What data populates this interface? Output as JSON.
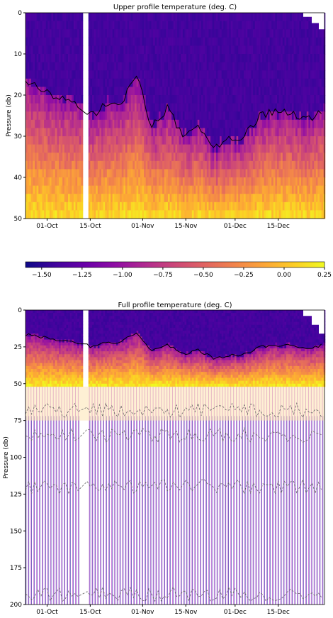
{
  "figure": {
    "colors": {
      "background": "#ffffff",
      "cmap": [
        "#0d0887",
        "#41049d",
        "#6a00a8",
        "#8f0da4",
        "#b12a90",
        "#cc4778",
        "#e16462",
        "#f2844b",
        "#fca636",
        "#fcce25",
        "#f0f921"
      ]
    }
  },
  "chart_data": [
    {
      "type": "heatmap",
      "title": "Upper profile temperature (deg. C)",
      "xlabel": "",
      "ylabel": "Pressure (db)",
      "x_ticks": [
        "01-Oct",
        "15-Oct",
        "01-Nov",
        "15-Nov",
        "01-Dec",
        "15-Dec"
      ],
      "x_range": [
        "2023-09-24",
        "2023-12-30"
      ],
      "y_ticks": [
        0,
        10,
        20,
        30,
        40,
        50
      ],
      "ylim": [
        50,
        0
      ],
      "z_range": [
        -1.6,
        0.25
      ],
      "gap": [
        "2023-10-12",
        "2023-10-14"
      ],
      "thermocline_depth_by_date": [
        {
          "date": "2023-09-26",
          "depth": 17
        },
        {
          "date": "2023-10-03",
          "depth": 20
        },
        {
          "date": "2023-10-10",
          "depth": 22
        },
        {
          "date": "2023-10-16",
          "depth": 25
        },
        {
          "date": "2023-10-20",
          "depth": 22
        },
        {
          "date": "2023-10-25",
          "depth": 22
        },
        {
          "date": "2023-10-30",
          "depth": 15
        },
        {
          "date": "2023-11-04",
          "depth": 28
        },
        {
          "date": "2023-11-09",
          "depth": 23
        },
        {
          "date": "2023-11-14",
          "depth": 30
        },
        {
          "date": "2023-11-19",
          "depth": 27
        },
        {
          "date": "2023-11-24",
          "depth": 33
        },
        {
          "date": "2023-11-29",
          "depth": 31
        },
        {
          "date": "2023-12-04",
          "depth": 30
        },
        {
          "date": "2023-12-09",
          "depth": 25
        },
        {
          "date": "2023-12-14",
          "depth": 24
        },
        {
          "date": "2023-12-19",
          "depth": 24
        },
        {
          "date": "2023-12-24",
          "depth": 26
        },
        {
          "date": "2023-12-29",
          "depth": 24
        }
      ],
      "values_at_depth": [
        {
          "depth": 5,
          "value": -1.45
        },
        {
          "depth": 15,
          "value": -1.35
        },
        {
          "depth": 25,
          "value": -1.0
        },
        {
          "depth": 35,
          "value": -0.8
        },
        {
          "depth": 45,
          "value": -0.2
        },
        {
          "depth": 50,
          "value": 0.05
        }
      ]
    },
    {
      "type": "heatmap",
      "title": "",
      "orientation": "horizontal colorbar",
      "x_ticks": [
        -1.5,
        -1.25,
        -1.0,
        -0.75,
        -0.5,
        -0.25,
        0.0,
        0.25
      ],
      "x_tick_labels": [
        "−1.50",
        "−1.25",
        "−1.00",
        "−0.75",
        "−0.50",
        "−0.25",
        "0.00",
        "0.25"
      ],
      "xlim": [
        -1.6,
        0.25
      ]
    },
    {
      "type": "heatmap",
      "title": "Full profile temperature (deg. C)",
      "xlabel": "",
      "ylabel": "Pressure (db)",
      "x_ticks": [
        "01-Oct",
        "15-Oct",
        "01-Nov",
        "15-Nov",
        "01-Dec",
        "15-Dec"
      ],
      "x_range": [
        "2023-09-24",
        "2023-12-30"
      ],
      "y_ticks": [
        0,
        25,
        50,
        75,
        100,
        125,
        150,
        175,
        200
      ],
      "ylim": [
        200,
        0
      ],
      "z_range": [
        -1.6,
        0.25
      ],
      "gap": [
        "2023-10-12",
        "2023-10-14"
      ],
      "dense_sampling_limit": 52,
      "profile_spacing_days": 0.9,
      "contour_depths": [
        68,
        85,
        120,
        193
      ]
    }
  ]
}
